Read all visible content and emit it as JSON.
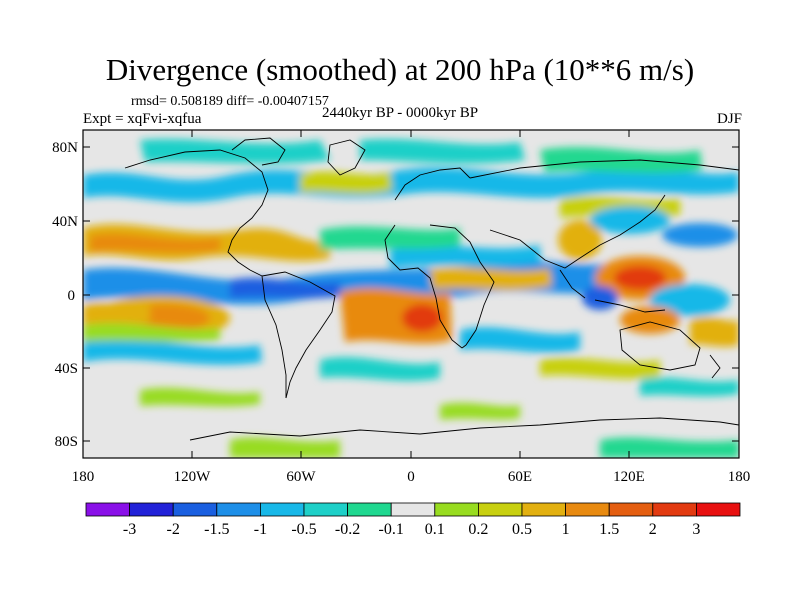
{
  "title": "Divergence (smoothed) at 200 hPa (10**6 m/s)",
  "stats": "rmsd= 0.508189 diff= -0.00407157",
  "experiment": "Expt = xqFvi-xqfua",
  "period": "2440kyr BP - 0000kyr BP",
  "season": "DJF",
  "map_axes": {
    "lat_labels": [
      "80N",
      "40N",
      "0",
      "40S",
      "80S"
    ],
    "lon_labels": [
      "180",
      "120W",
      "60W",
      "0",
      "60E",
      "120E",
      "180"
    ]
  },
  "colorbar": {
    "labels": [
      "-3",
      "-2",
      "-1.5",
      "-1",
      "-0.5",
      "-0.2",
      "-0.1",
      "0.1",
      "0.2",
      "0.5",
      "1",
      "1.5",
      "2",
      "3"
    ],
    "colors": [
      "#8a10e8",
      "#2222d8",
      "#1a5fe0",
      "#1e8fe8",
      "#18b8e8",
      "#1ed0c8",
      "#20d890",
      "#e6e6e6",
      "#98dc20",
      "#c8d010",
      "#e2b010",
      "#e88a10",
      "#e45e10",
      "#e23a10",
      "#e81010"
    ]
  }
}
